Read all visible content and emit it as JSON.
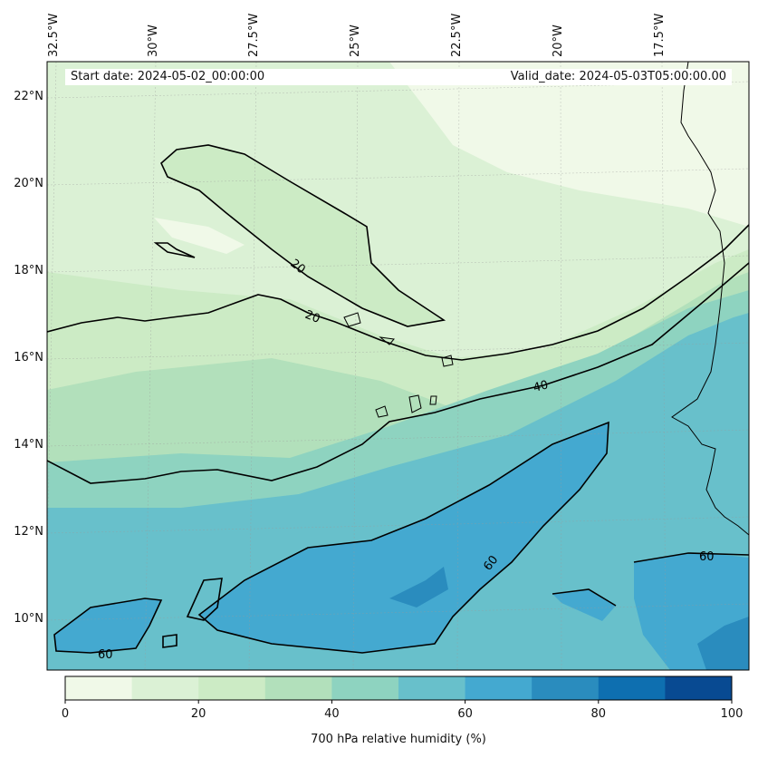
{
  "header": {
    "start_date": "Start date: 2024-05-02_00:00:00",
    "valid_date": "Valid_date: 2024-05-03T05:00:00.00"
  },
  "axes": {
    "lon_labels": [
      "32.5°W",
      "30°W",
      "27.5°W",
      "25°W",
      "22.5°W",
      "20°W",
      "17.5°W"
    ],
    "lat_labels": [
      "22°N",
      "20°N",
      "18°N",
      "16°N",
      "14°N",
      "12°N",
      "10°N"
    ]
  },
  "contours": {
    "labels": [
      "20",
      "20",
      "40",
      "60",
      "60",
      "60"
    ]
  },
  "colorbar": {
    "title": "700 hPa relative humidity (%)",
    "ticks": [
      "0",
      "20",
      "40",
      "60",
      "80",
      "100"
    ],
    "colors": [
      "#f0f9e8",
      "#dbf1d5",
      "#ccebc5",
      "#b2e0bb",
      "#8ed3c0",
      "#68c0cb",
      "#44a9d0",
      "#2a8cbe",
      "#0e6fb0",
      "#084a92"
    ]
  }
}
